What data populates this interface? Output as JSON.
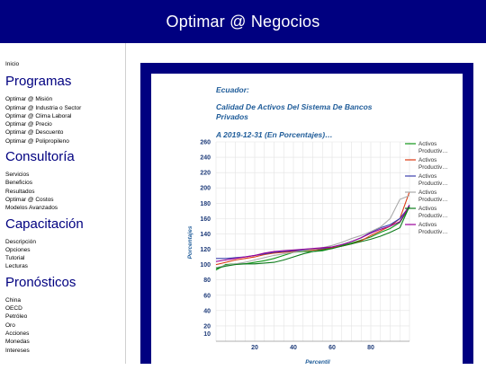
{
  "header": {
    "title": "Optimar @ Negocios"
  },
  "sidebar": {
    "home": "Inicio",
    "sections": [
      {
        "title": "Programas",
        "items": [
          "Optimar @ Misión",
          "Optimar @ Industria o Sector",
          "Optimar @ Clima Laboral",
          "Optimar @ Precio",
          "Optimar @ Descuento",
          "Optimar @ Polipropileno"
        ]
      },
      {
        "title": "Consultoría",
        "items": [
          "Servicios",
          "Beneficios",
          "Resultados",
          "Optimar @ Costos",
          "Modelos Avanzados"
        ]
      },
      {
        "title": "Capacitación",
        "items": [
          "Descripción",
          "Opciones",
          "Tutorial",
          "Lecturas"
        ]
      },
      {
        "title": "Pronósticos",
        "items": [
          "China",
          "OECD",
          "Petróleo",
          "Oro",
          "Acciones",
          "Monedas",
          "Intereses"
        ]
      }
    ]
  },
  "chart_data": {
    "type": "line",
    "title_lines": [
      "Ecuador:",
      "Calidad De Activos Del Sistema De Bancos Privados",
      "A 2019-12-31 (En Porcentajes)…"
    ],
    "xlabel": "Percentil",
    "ylabel": "Porcentajes",
    "xlim": [
      0,
      100
    ],
    "ylim": [
      0,
      260
    ],
    "x_ticks": [
      20,
      40,
      60,
      80
    ],
    "y_ticks": [
      260,
      240,
      220,
      200,
      180,
      160,
      140,
      120,
      100,
      80,
      60,
      40,
      20,
      10
    ],
    "grid": true,
    "legend_position": "right",
    "series": [
      {
        "name": "Activos Productiv…",
        "color": "#109618",
        "x": [
          0,
          5,
          10,
          15,
          20,
          25,
          30,
          35,
          40,
          45,
          50,
          55,
          60,
          65,
          70,
          75,
          80,
          85,
          90,
          95,
          100
        ],
        "y": [
          93,
          100,
          101,
          101,
          103,
          105,
          108,
          112,
          116,
          117,
          117,
          118,
          121,
          125,
          128,
          132,
          136,
          142,
          147,
          155,
          175
        ]
      },
      {
        "name": "Activos Productiv…",
        "color": "#dc3912",
        "x": [
          0,
          5,
          10,
          15,
          20,
          25,
          30,
          35,
          40,
          45,
          50,
          55,
          60,
          65,
          70,
          75,
          80,
          85,
          90,
          95,
          100
        ],
        "y": [
          100,
          103,
          106,
          108,
          110,
          113,
          115,
          116,
          117,
          118,
          119,
          120,
          122,
          124,
          127,
          131,
          138,
          144,
          150,
          160,
          195
        ]
      },
      {
        "name": "Activos Productiv…",
        "color": "#3b3eac",
        "x": [
          0,
          5,
          10,
          15,
          20,
          25,
          30,
          35,
          40,
          45,
          50,
          55,
          60,
          65,
          70,
          75,
          80,
          85,
          90,
          95,
          100
        ],
        "y": [
          108,
          108,
          109,
          110,
          112,
          114,
          116,
          117,
          118,
          119,
          120,
          121,
          123,
          126,
          130,
          135,
          142,
          148,
          152,
          160,
          176
        ]
      },
      {
        "name": "Activos Productiv…",
        "color": "#aaaaaa",
        "x": [
          0,
          5,
          10,
          15,
          20,
          25,
          30,
          35,
          40,
          45,
          50,
          55,
          60,
          65,
          70,
          75,
          80,
          85,
          90,
          95,
          100
        ],
        "y": [
          96,
          99,
          101,
          103,
          106,
          109,
          112,
          114,
          116,
          118,
          120,
          122,
          125,
          129,
          134,
          138,
          143,
          149,
          160,
          185,
          190
        ]
      },
      {
        "name": "Activos Productiv…",
        "color": "#0c7b1a",
        "x": [
          0,
          5,
          10,
          15,
          20,
          25,
          30,
          35,
          40,
          45,
          50,
          55,
          60,
          65,
          70,
          75,
          80,
          85,
          90,
          95,
          100
        ],
        "y": [
          95,
          98,
          100,
          101,
          101,
          102,
          103,
          106,
          110,
          114,
          117,
          119,
          121,
          124,
          127,
          130,
          133,
          137,
          142,
          148,
          176
        ]
      },
      {
        "name": "Activos Productiv…",
        "color": "#990099",
        "x": [
          0,
          5,
          10,
          15,
          20,
          25,
          30,
          35,
          40,
          45,
          50,
          55,
          60,
          65,
          70,
          75,
          80,
          85,
          90,
          95,
          100
        ],
        "y": [
          104,
          106,
          108,
          110,
          112,
          115,
          117,
          118,
          119,
          120,
          121,
          122,
          123,
          126,
          130,
          135,
          141,
          146,
          150,
          156,
          178
        ]
      }
    ]
  }
}
